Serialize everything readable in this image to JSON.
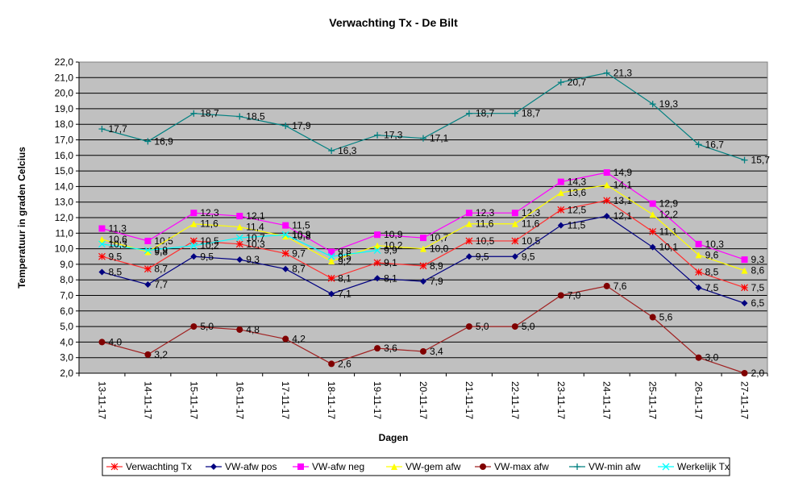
{
  "chart_data": {
    "type": "line",
    "title": "Verwachting Tx - De Bilt",
    "x_label": "Dagen",
    "y_label": "Temperatuur in graden Celcius",
    "categories": [
      "13-11-17",
      "14-11-17",
      "15-11-17",
      "16-11-17",
      "17-11-17",
      "18-11-17",
      "19-11-17",
      "20-11-17",
      "21-11-17",
      "22-11-17",
      "23-11-17",
      "24-11-17",
      "25-11-17",
      "26-11-17",
      "27-11-17"
    ],
    "ylim": [
      2,
      22
    ],
    "yticks": [
      {
        "value": 2,
        "label": "2,0"
      },
      {
        "value": 3,
        "label": "3,0"
      },
      {
        "value": 4,
        "label": "4,0"
      },
      {
        "value": 5,
        "label": "5,0"
      },
      {
        "value": 6,
        "label": "6,0"
      },
      {
        "value": 7,
        "label": "7,0"
      },
      {
        "value": 8,
        "label": "8,0"
      },
      {
        "value": 9,
        "label": "9,0"
      },
      {
        "value": 10,
        "label": "10,0"
      },
      {
        "value": 11,
        "label": "11,0"
      },
      {
        "value": 12,
        "label": "12,0"
      },
      {
        "value": 13,
        "label": "13,0"
      },
      {
        "value": 14,
        "label": "14,0"
      },
      {
        "value": 15,
        "label": "15,0"
      },
      {
        "value": 16,
        "label": "16,0"
      },
      {
        "value": 17,
        "label": "17,0"
      },
      {
        "value": 18,
        "label": "18,0"
      },
      {
        "value": 19,
        "label": "19,0"
      },
      {
        "value": 20,
        "label": "20,0"
      },
      {
        "value": 21,
        "label": "21,0"
      },
      {
        "value": 22,
        "label": "22,0"
      }
    ],
    "grid": true,
    "series": [
      {
        "name": "Verwachting Tx",
        "color": "#ff0000",
        "line_color": "#ff3030",
        "marker": "asterisk",
        "values": [
          9.5,
          8.7,
          10.5,
          10.3,
          9.7,
          8.1,
          9.1,
          8.9,
          10.5,
          10.5,
          12.5,
          13.1,
          11.1,
          8.5,
          7.5
        ],
        "value_labels": [
          "9,5",
          "8,7",
          "10,5",
          "10,3",
          "9,7",
          "8,1",
          "9,1",
          "8,9",
          "10,5",
          "10,5",
          "12,5",
          "13,1",
          "11,1",
          "8,5",
          "7,5"
        ]
      },
      {
        "name": "VW-afw pos",
        "color": "#000080",
        "line_color": "#000080",
        "marker": "diamond",
        "values": [
          8.5,
          7.7,
          9.5,
          9.3,
          8.7,
          7.1,
          8.1,
          7.9,
          9.5,
          9.5,
          11.5,
          12.1,
          10.1,
          7.5,
          6.5
        ],
        "value_labels": [
          "8,5",
          "7,7",
          "9,5",
          "9,3",
          "8,7",
          "7,1",
          "8,1",
          "7,9",
          "9,5",
          "9,5",
          "11,5",
          "12,1",
          "10,1",
          "7,5",
          "6,5"
        ]
      },
      {
        "name": "VW-afw neg",
        "color": "#ff00ff",
        "line_color": "#ff00ff",
        "marker": "square",
        "values": [
          11.3,
          10.5,
          12.3,
          12.1,
          11.5,
          9.8,
          10.9,
          10.7,
          12.3,
          12.3,
          14.3,
          14.9,
          12.9,
          10.3,
          9.3
        ],
        "value_labels": [
          "11,3",
          "10,5",
          "12,3",
          "12,1",
          "11,5",
          "9,8",
          "10,9",
          "10,7",
          "12,3",
          "12,3",
          "14,3",
          "14,9",
          "12,9",
          "10,3",
          "9,3"
        ]
      },
      {
        "name": "VW-gem afw",
        "color": "#ffff00",
        "line_color": "#ffff00",
        "marker": "triangle",
        "values": [
          10.6,
          9.8,
          11.6,
          11.4,
          10.8,
          9.2,
          10.2,
          10.0,
          11.6,
          11.6,
          13.6,
          14.1,
          12.2,
          9.6,
          8.6
        ],
        "value_labels": [
          "10,6",
          "9,8",
          "11,6",
          "11,4",
          "10,8",
          "9,2",
          "10,2",
          "10,0",
          "11,6",
          "11,6",
          "13,6",
          "14,1",
          "12,2",
          "9,6",
          "8,6"
        ]
      },
      {
        "name": "VW-max afw",
        "color": "#800000",
        "line_color": "#a02020",
        "marker": "circle",
        "values": [
          4.0,
          3.2,
          5.0,
          4.8,
          4.2,
          2.6,
          3.6,
          3.4,
          5.0,
          5.0,
          7.0,
          7.6,
          5.6,
          3.0,
          2.0
        ],
        "value_labels": [
          "4,0",
          "3,2",
          "5,0",
          "4,8",
          "4,2",
          "2,6",
          "3,6",
          "3,4",
          "5,0",
          "5,0",
          "7,0",
          "7,6",
          "5,6",
          "3,0",
          "2,0"
        ]
      },
      {
        "name": "VW-min afw",
        "color": "#008080",
        "line_color": "#008080",
        "marker": "plus",
        "values": [
          17.7,
          16.9,
          18.7,
          18.5,
          17.9,
          16.3,
          17.3,
          17.1,
          18.7,
          18.7,
          20.7,
          21.3,
          19.3,
          16.7,
          15.7
        ],
        "value_labels": [
          "17,7",
          "16,9",
          "18,7",
          "18,5",
          "17,9",
          "16,3",
          "17,3",
          "17,1",
          "18,7",
          "18,7",
          "20,7",
          "21,3",
          "19,3",
          "16,7",
          "15,7"
        ]
      },
      {
        "name": "Werkelijk Tx",
        "color": "#00ffff",
        "line_color": "#00ffff",
        "marker": "x",
        "values": [
          10.3,
          9.9,
          10.2,
          10.7,
          10.9,
          9.5,
          9.9,
          null,
          null,
          null,
          null,
          null,
          null,
          null,
          null
        ],
        "value_labels": [
          "10,3",
          "9,9",
          "10,2",
          "10,7",
          "10,9",
          "9,5",
          "9,9",
          null,
          null,
          null,
          null,
          null,
          null,
          null,
          null
        ]
      }
    ]
  }
}
